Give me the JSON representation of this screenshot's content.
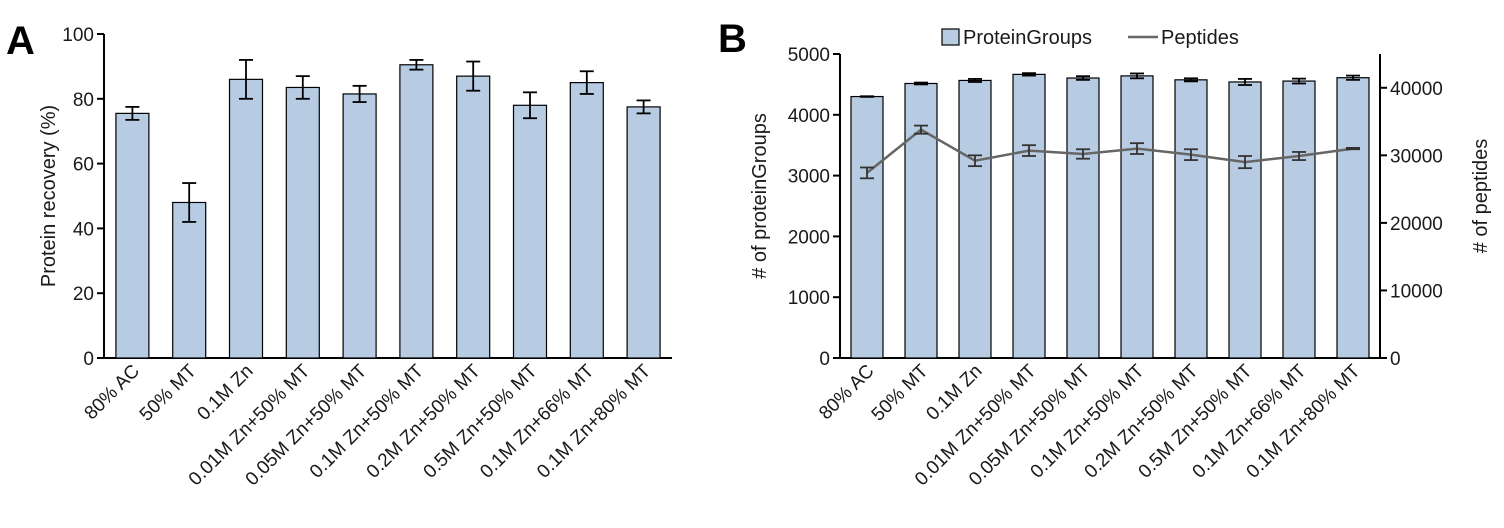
{
  "colors": {
    "bar_fill": "#b7cbe3",
    "peptide_line": "#666666",
    "axis": "#000000"
  },
  "chart_data": [
    {
      "panel": "A",
      "type": "bar",
      "categories": [
        "80% AC",
        "50% MT",
        "0.1M Zn",
        "0.01M Zn+50% MT",
        "0.05M Zn+50% MT",
        "0.1M Zn+50% MT",
        "0.2M Zn+50% MT",
        "0.5M Zn+50% MT",
        "0.1M Zn+66% MT",
        "0.1M Zn+80% MT"
      ],
      "values": [
        75.5,
        48,
        86,
        83.5,
        81.5,
        90.5,
        87,
        78,
        85,
        77.5
      ],
      "errors": [
        2,
        6,
        6,
        3.5,
        2.5,
        1.5,
        4.5,
        4,
        3.5,
        2
      ],
      "ylabel": "Protein recovery (%)",
      "ylim": [
        0,
        100
      ],
      "yticks": [
        0,
        20,
        40,
        60,
        80,
        100
      ],
      "grid": false
    },
    {
      "panel": "B",
      "type": "bar",
      "categories": [
        "80% AC",
        "50% MT",
        "0.1M Zn",
        "0.01M Zn+50% MT",
        "0.05M Zn+50% MT",
        "0.1M Zn+50% MT",
        "0.2M Zn+50% MT",
        "0.5M Zn+50% MT",
        "0.1M Zn+66% MT",
        "0.1M Zn+80% MT"
      ],
      "series": [
        {
          "name": "ProteinGroups",
          "type": "bar",
          "axis": "left",
          "values": [
            4300,
            4515,
            4565,
            4665,
            4605,
            4640,
            4575,
            4540,
            4555,
            4610
          ],
          "errors": [
            5,
            15,
            25,
            20,
            30,
            40,
            25,
            50,
            40,
            35
          ]
        },
        {
          "name": "Peptides",
          "type": "line",
          "axis": "right",
          "values": [
            27400,
            33800,
            29200,
            30700,
            30200,
            31000,
            30100,
            29000,
            29900,
            31000
          ],
          "errors": [
            800,
            600,
            800,
            800,
            700,
            800,
            800,
            900,
            600,
            100
          ]
        }
      ],
      "ylabel": "# of proteinGroups",
      "ylim": [
        0,
        5000
      ],
      "yticks": [
        0,
        1000,
        2000,
        3000,
        4000,
        5000
      ],
      "y2label": "# of peptides",
      "y2lim": [
        0,
        45000
      ],
      "y2ticks": [
        0,
        10000,
        20000,
        30000,
        40000
      ],
      "legend": {
        "position": "top-center",
        "items": [
          "ProteinGroups",
          "Peptides"
        ]
      },
      "grid": false
    }
  ]
}
